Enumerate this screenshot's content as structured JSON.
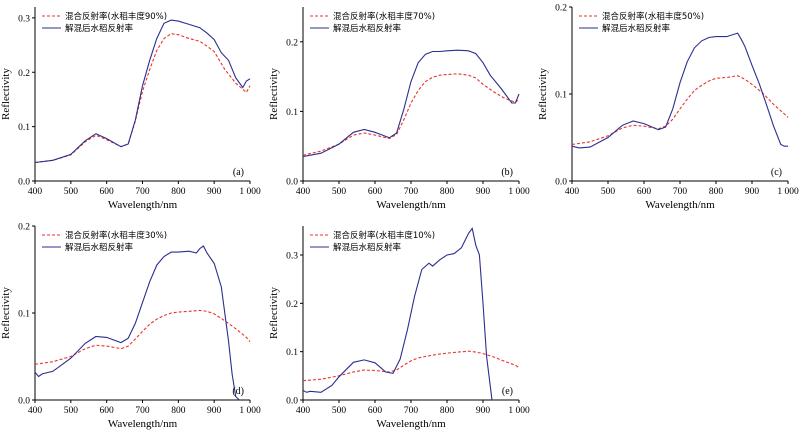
{
  "chart_data": [
    {
      "type": "line",
      "tag": "(a)",
      "xlabel": "Wavelength/nm",
      "ylabel": "Reflectivity",
      "xlim": [
        400,
        1000
      ],
      "ylim": [
        0,
        0.32
      ],
      "xticks": [
        "400",
        "500",
        "600",
        "700",
        "800",
        "900",
        "1 000"
      ],
      "xtick_values": [
        400,
        500,
        600,
        700,
        800,
        900,
        1000
      ],
      "yticks": [
        "0.0",
        "0.1",
        "0.2",
        "0.3"
      ],
      "ytick_values": [
        0,
        0.1,
        0.2,
        0.3
      ],
      "legend_position": "top-left",
      "series": [
        {
          "name": "混合反射率(水稻丰度90%)",
          "style": "dashed",
          "color": "#e8332c",
          "x": [
            400,
            450,
            500,
            540,
            570,
            600,
            640,
            660,
            680,
            700,
            720,
            740,
            760,
            780,
            800,
            830,
            860,
            880,
            900,
            930,
            960,
            990,
            1000
          ],
          "y": [
            0.034,
            0.038,
            0.048,
            0.072,
            0.084,
            0.076,
            0.063,
            0.068,
            0.11,
            0.165,
            0.205,
            0.24,
            0.262,
            0.271,
            0.269,
            0.262,
            0.257,
            0.248,
            0.238,
            0.205,
            0.18,
            0.163,
            0.175
          ]
        },
        {
          "name": "解混后水稻反射率",
          "style": "solid",
          "color": "#2b2f8f",
          "x": [
            400,
            450,
            500,
            540,
            570,
            600,
            640,
            660,
            680,
            700,
            720,
            740,
            760,
            780,
            800,
            830,
            860,
            880,
            900,
            920,
            940,
            960,
            980,
            990,
            1000
          ],
          "y": [
            0.034,
            0.038,
            0.049,
            0.074,
            0.087,
            0.078,
            0.063,
            0.068,
            0.112,
            0.175,
            0.222,
            0.262,
            0.29,
            0.296,
            0.294,
            0.288,
            0.282,
            0.272,
            0.26,
            0.236,
            0.222,
            0.19,
            0.172,
            0.184,
            0.188
          ]
        }
      ]
    },
    {
      "type": "line",
      "tag": "(b)",
      "xlabel": "Wavelength/nm",
      "ylabel": "Reflectivity",
      "xlim": [
        400,
        1000
      ],
      "ylim": [
        0,
        0.25
      ],
      "xticks": [
        "400",
        "500",
        "600",
        "700",
        "800",
        "900",
        "1 000"
      ],
      "xtick_values": [
        400,
        500,
        600,
        700,
        800,
        900,
        1000
      ],
      "yticks": [
        "0.0",
        "0.1",
        "0.2"
      ],
      "ytick_values": [
        0,
        0.1,
        0.2
      ],
      "legend_position": "top-left",
      "series": [
        {
          "name": "混合反射率(水稻丰度70%)",
          "style": "dashed",
          "color": "#e8332c",
          "x": [
            400,
            450,
            500,
            540,
            570,
            600,
            640,
            660,
            680,
            700,
            720,
            740,
            760,
            780,
            800,
            830,
            860,
            880,
            900,
            930,
            960,
            990,
            1000
          ],
          "y": [
            0.037,
            0.043,
            0.053,
            0.066,
            0.069,
            0.066,
            0.061,
            0.067,
            0.088,
            0.112,
            0.13,
            0.143,
            0.149,
            0.152,
            0.153,
            0.154,
            0.152,
            0.148,
            0.139,
            0.128,
            0.119,
            0.113,
            0.118
          ]
        },
        {
          "name": "解混后水稻反射率",
          "style": "solid",
          "color": "#2b2f8f",
          "x": [
            400,
            450,
            500,
            540,
            570,
            600,
            640,
            660,
            680,
            700,
            720,
            740,
            760,
            780,
            800,
            830,
            860,
            880,
            900,
            920,
            950,
            980,
            990,
            1000
          ],
          "y": [
            0.035,
            0.04,
            0.053,
            0.07,
            0.074,
            0.07,
            0.062,
            0.069,
            0.103,
            0.143,
            0.17,
            0.182,
            0.186,
            0.186,
            0.187,
            0.188,
            0.187,
            0.183,
            0.17,
            0.152,
            0.133,
            0.112,
            0.112,
            0.125
          ]
        }
      ]
    },
    {
      "type": "line",
      "tag": "(c)",
      "xlabel": "Wavelength/nm",
      "ylabel": "Reflectivity",
      "xlim": [
        400,
        1000
      ],
      "ylim": [
        0,
        0.2
      ],
      "xticks": [
        "400",
        "500",
        "600",
        "700",
        "800",
        "900",
        "1 000"
      ],
      "xtick_values": [
        400,
        500,
        600,
        700,
        800,
        900,
        1000
      ],
      "yticks": [
        "0.0",
        "0.1",
        "0.2"
      ],
      "ytick_values": [
        0,
        0.1,
        0.2
      ],
      "legend_position": "top-left",
      "series": [
        {
          "name": "混合反射率(水稻丰度50%)",
          "style": "dashed",
          "color": "#e8332c",
          "x": [
            400,
            450,
            500,
            540,
            570,
            600,
            640,
            660,
            680,
            700,
            720,
            740,
            760,
            780,
            800,
            830,
            860,
            880,
            900,
            930,
            960,
            990,
            1000
          ],
          "y": [
            0.042,
            0.045,
            0.052,
            0.061,
            0.064,
            0.063,
            0.06,
            0.063,
            0.071,
            0.083,
            0.094,
            0.104,
            0.11,
            0.115,
            0.118,
            0.119,
            0.121,
            0.117,
            0.111,
            0.101,
            0.088,
            0.077,
            0.073
          ]
        },
        {
          "name": "解混后水稻反射率",
          "style": "solid",
          "color": "#2b2f8f",
          "x": [
            400,
            420,
            450,
            500,
            540,
            570,
            600,
            640,
            660,
            680,
            700,
            720,
            740,
            760,
            780,
            800,
            830,
            860,
            870,
            880,
            900,
            920,
            940,
            960,
            980,
            990,
            1000
          ],
          "y": [
            0.04,
            0.038,
            0.039,
            0.05,
            0.064,
            0.069,
            0.066,
            0.059,
            0.062,
            0.083,
            0.113,
            0.137,
            0.153,
            0.161,
            0.165,
            0.166,
            0.166,
            0.17,
            0.163,
            0.155,
            0.133,
            0.112,
            0.088,
            0.063,
            0.042,
            0.04,
            0.04
          ]
        }
      ]
    },
    {
      "type": "line",
      "tag": "(d)",
      "xlabel": "Wavelength/nm",
      "ylabel": "Reflectivity",
      "xlim": [
        400,
        1000
      ],
      "ylim": [
        0,
        0.2
      ],
      "xticks": [
        "400",
        "500",
        "600",
        "700",
        "800",
        "900",
        "1 000"
      ],
      "xtick_values": [
        400,
        500,
        600,
        700,
        800,
        900,
        1000
      ],
      "yticks": [
        "0.0",
        "0.1",
        "0.2"
      ],
      "ytick_values": [
        0,
        0.1,
        0.2
      ],
      "legend_position": "top-left",
      "series": [
        {
          "name": "混合反射率(水稻丰度30%)",
          "style": "dashed",
          "color": "#e8332c",
          "x": [
            400,
            450,
            500,
            540,
            570,
            600,
            640,
            660,
            680,
            700,
            720,
            740,
            760,
            780,
            800,
            830,
            860,
            880,
            900,
            930,
            960,
            990,
            1000
          ],
          "y": [
            0.041,
            0.044,
            0.05,
            0.059,
            0.063,
            0.062,
            0.059,
            0.062,
            0.07,
            0.079,
            0.087,
            0.093,
            0.097,
            0.1,
            0.101,
            0.102,
            0.103,
            0.102,
            0.099,
            0.091,
            0.082,
            0.072,
            0.067
          ]
        },
        {
          "name": "解混后水稻反射率",
          "style": "solid",
          "color": "#2b2f8f",
          "x": [
            400,
            410,
            420,
            450,
            500,
            540,
            570,
            600,
            640,
            660,
            680,
            700,
            720,
            740,
            760,
            780,
            800,
            830,
            850,
            860,
            870,
            880,
            900,
            920,
            940,
            950,
            960,
            970
          ],
          "y": [
            0.032,
            0.027,
            0.03,
            0.033,
            0.048,
            0.065,
            0.073,
            0.072,
            0.066,
            0.071,
            0.088,
            0.112,
            0.136,
            0.155,
            0.165,
            0.17,
            0.17,
            0.171,
            0.169,
            0.174,
            0.177,
            0.169,
            0.157,
            0.13,
            0.068,
            0.03,
            0.004,
            0.0
          ]
        }
      ]
    },
    {
      "type": "line",
      "tag": "(e)",
      "xlabel": "Wavelength/nm",
      "ylabel": "Reflectivity",
      "xlim": [
        400,
        1000
      ],
      "ylim": [
        0,
        0.36
      ],
      "xticks": [
        "400",
        "500",
        "600",
        "700",
        "800",
        "900",
        "1 000"
      ],
      "xtick_values": [
        400,
        500,
        600,
        700,
        800,
        900,
        1000
      ],
      "yticks": [
        "0.0",
        "0.1",
        "0.2",
        "0.3"
      ],
      "ytick_values": [
        0,
        0.1,
        0.2,
        0.3
      ],
      "legend_position": "top-left",
      "series": [
        {
          "name": "混合反射率(水稻丰度10%)",
          "style": "dashed",
          "color": "#e8332c",
          "x": [
            400,
            450,
            500,
            540,
            570,
            600,
            640,
            660,
            680,
            700,
            720,
            740,
            760,
            780,
            800,
            830,
            860,
            880,
            900,
            930,
            960,
            990,
            1000
          ],
          "y": [
            0.04,
            0.043,
            0.05,
            0.058,
            0.062,
            0.061,
            0.058,
            0.062,
            0.072,
            0.081,
            0.087,
            0.09,
            0.093,
            0.095,
            0.097,
            0.099,
            0.101,
            0.099,
            0.096,
            0.089,
            0.08,
            0.072,
            0.067
          ]
        },
        {
          "name": "解混后水稻反射率",
          "style": "solid",
          "color": "#2b2f8f",
          "x": [
            400,
            410,
            420,
            450,
            480,
            500,
            540,
            570,
            600,
            630,
            650,
            670,
            690,
            710,
            730,
            750,
            760,
            780,
            800,
            820,
            840,
            860,
            870,
            880,
            890,
            900,
            910,
            920,
            925
          ],
          "y": [
            0.02,
            0.016,
            0.018,
            0.016,
            0.03,
            0.048,
            0.078,
            0.083,
            0.077,
            0.058,
            0.055,
            0.085,
            0.145,
            0.215,
            0.27,
            0.283,
            0.277,
            0.29,
            0.3,
            0.303,
            0.315,
            0.345,
            0.355,
            0.32,
            0.3,
            0.2,
            0.09,
            0.03,
            0.0
          ]
        }
      ]
    }
  ]
}
